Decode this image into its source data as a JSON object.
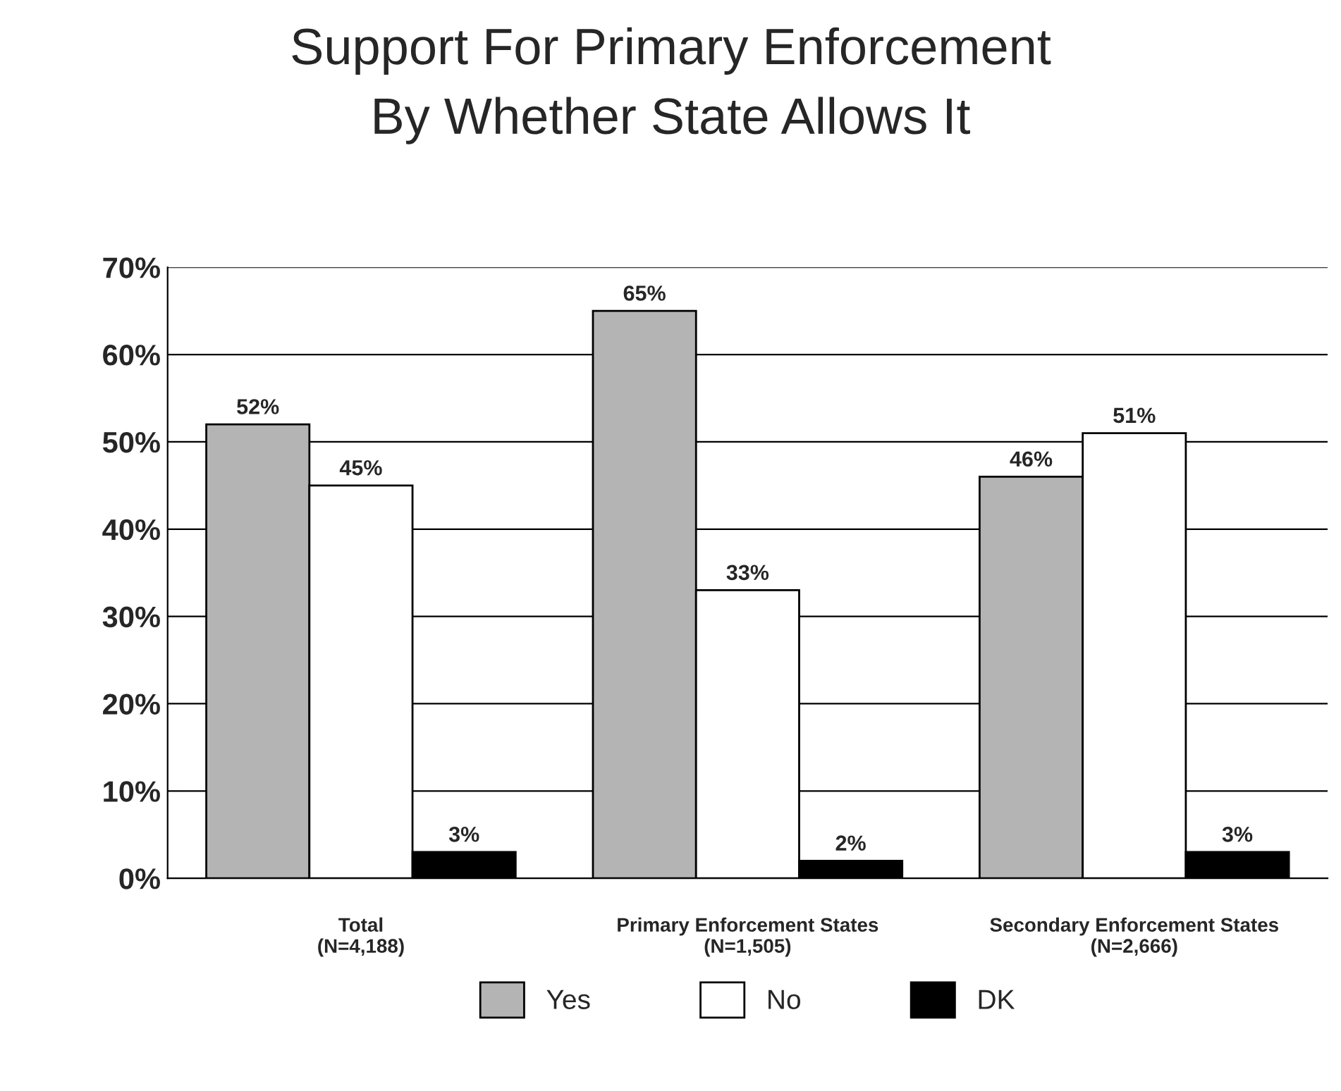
{
  "chart_data": {
    "type": "bar",
    "title": "Support For Primary Enforcement\nBy Whether State Allows It",
    "categories": [
      "Total\n(N=4,188)",
      "Primary Enforcement States\n(N=1,505)",
      "Secondary Enforcement States\n(N=2,666)"
    ],
    "series": [
      {
        "name": "Yes",
        "color": "#b4b4b4",
        "values": [
          52,
          65,
          46
        ]
      },
      {
        "name": "No",
        "color": "#ffffff",
        "values": [
          45,
          33,
          51
        ]
      },
      {
        "name": "DK",
        "color": "#000000",
        "values": [
          3,
          2,
          3
        ]
      }
    ],
    "ylim": [
      0,
      70
    ],
    "yticks": [
      {
        "value": 0,
        "label": "0%"
      },
      {
        "value": 10,
        "label": "10%"
      },
      {
        "value": 20,
        "label": "20%"
      },
      {
        "value": 30,
        "label": "30%"
      },
      {
        "value": 40,
        "label": "40%"
      },
      {
        "value": 50,
        "label": "50%"
      },
      {
        "value": 60,
        "label": "60%"
      },
      {
        "value": 70,
        "label": "70%"
      }
    ],
    "value_labels": [
      [
        "52%",
        "65%",
        "46%"
      ],
      [
        "45%",
        "33%",
        "51%"
      ],
      [
        "3%",
        "2%",
        "3%"
      ]
    ],
    "grid": "y",
    "legend": "bottom"
  }
}
